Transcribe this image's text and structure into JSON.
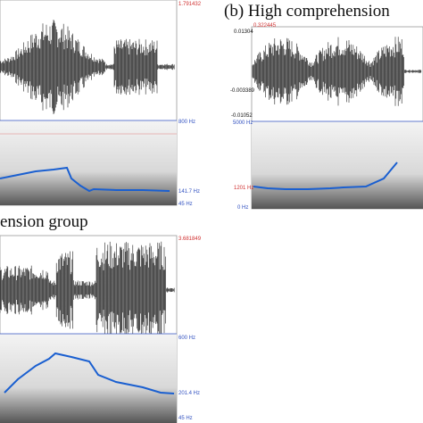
{
  "panel_a": {
    "time_end": "1.791432",
    "freq_top": "800 Hz",
    "pitch_value": "141.7 Hz",
    "freq_bottom": "45 Hz"
  },
  "panel_b": {
    "title": "(b) High comprehension",
    "time_end": "0.322445",
    "amp_max": "0.01304",
    "amp_mid": "-0.003389",
    "amp_min": "-0.01052",
    "freq_top": "5000 Hz",
    "pitch_value": "1201 Hz",
    "freq_bottom": "0 Hz"
  },
  "panel_c": {
    "title": "ension  group",
    "time_end": "3.681849",
    "freq_top": "600 Hz",
    "pitch_value": "201.4 Hz",
    "freq_bottom": "45 Hz"
  }
}
